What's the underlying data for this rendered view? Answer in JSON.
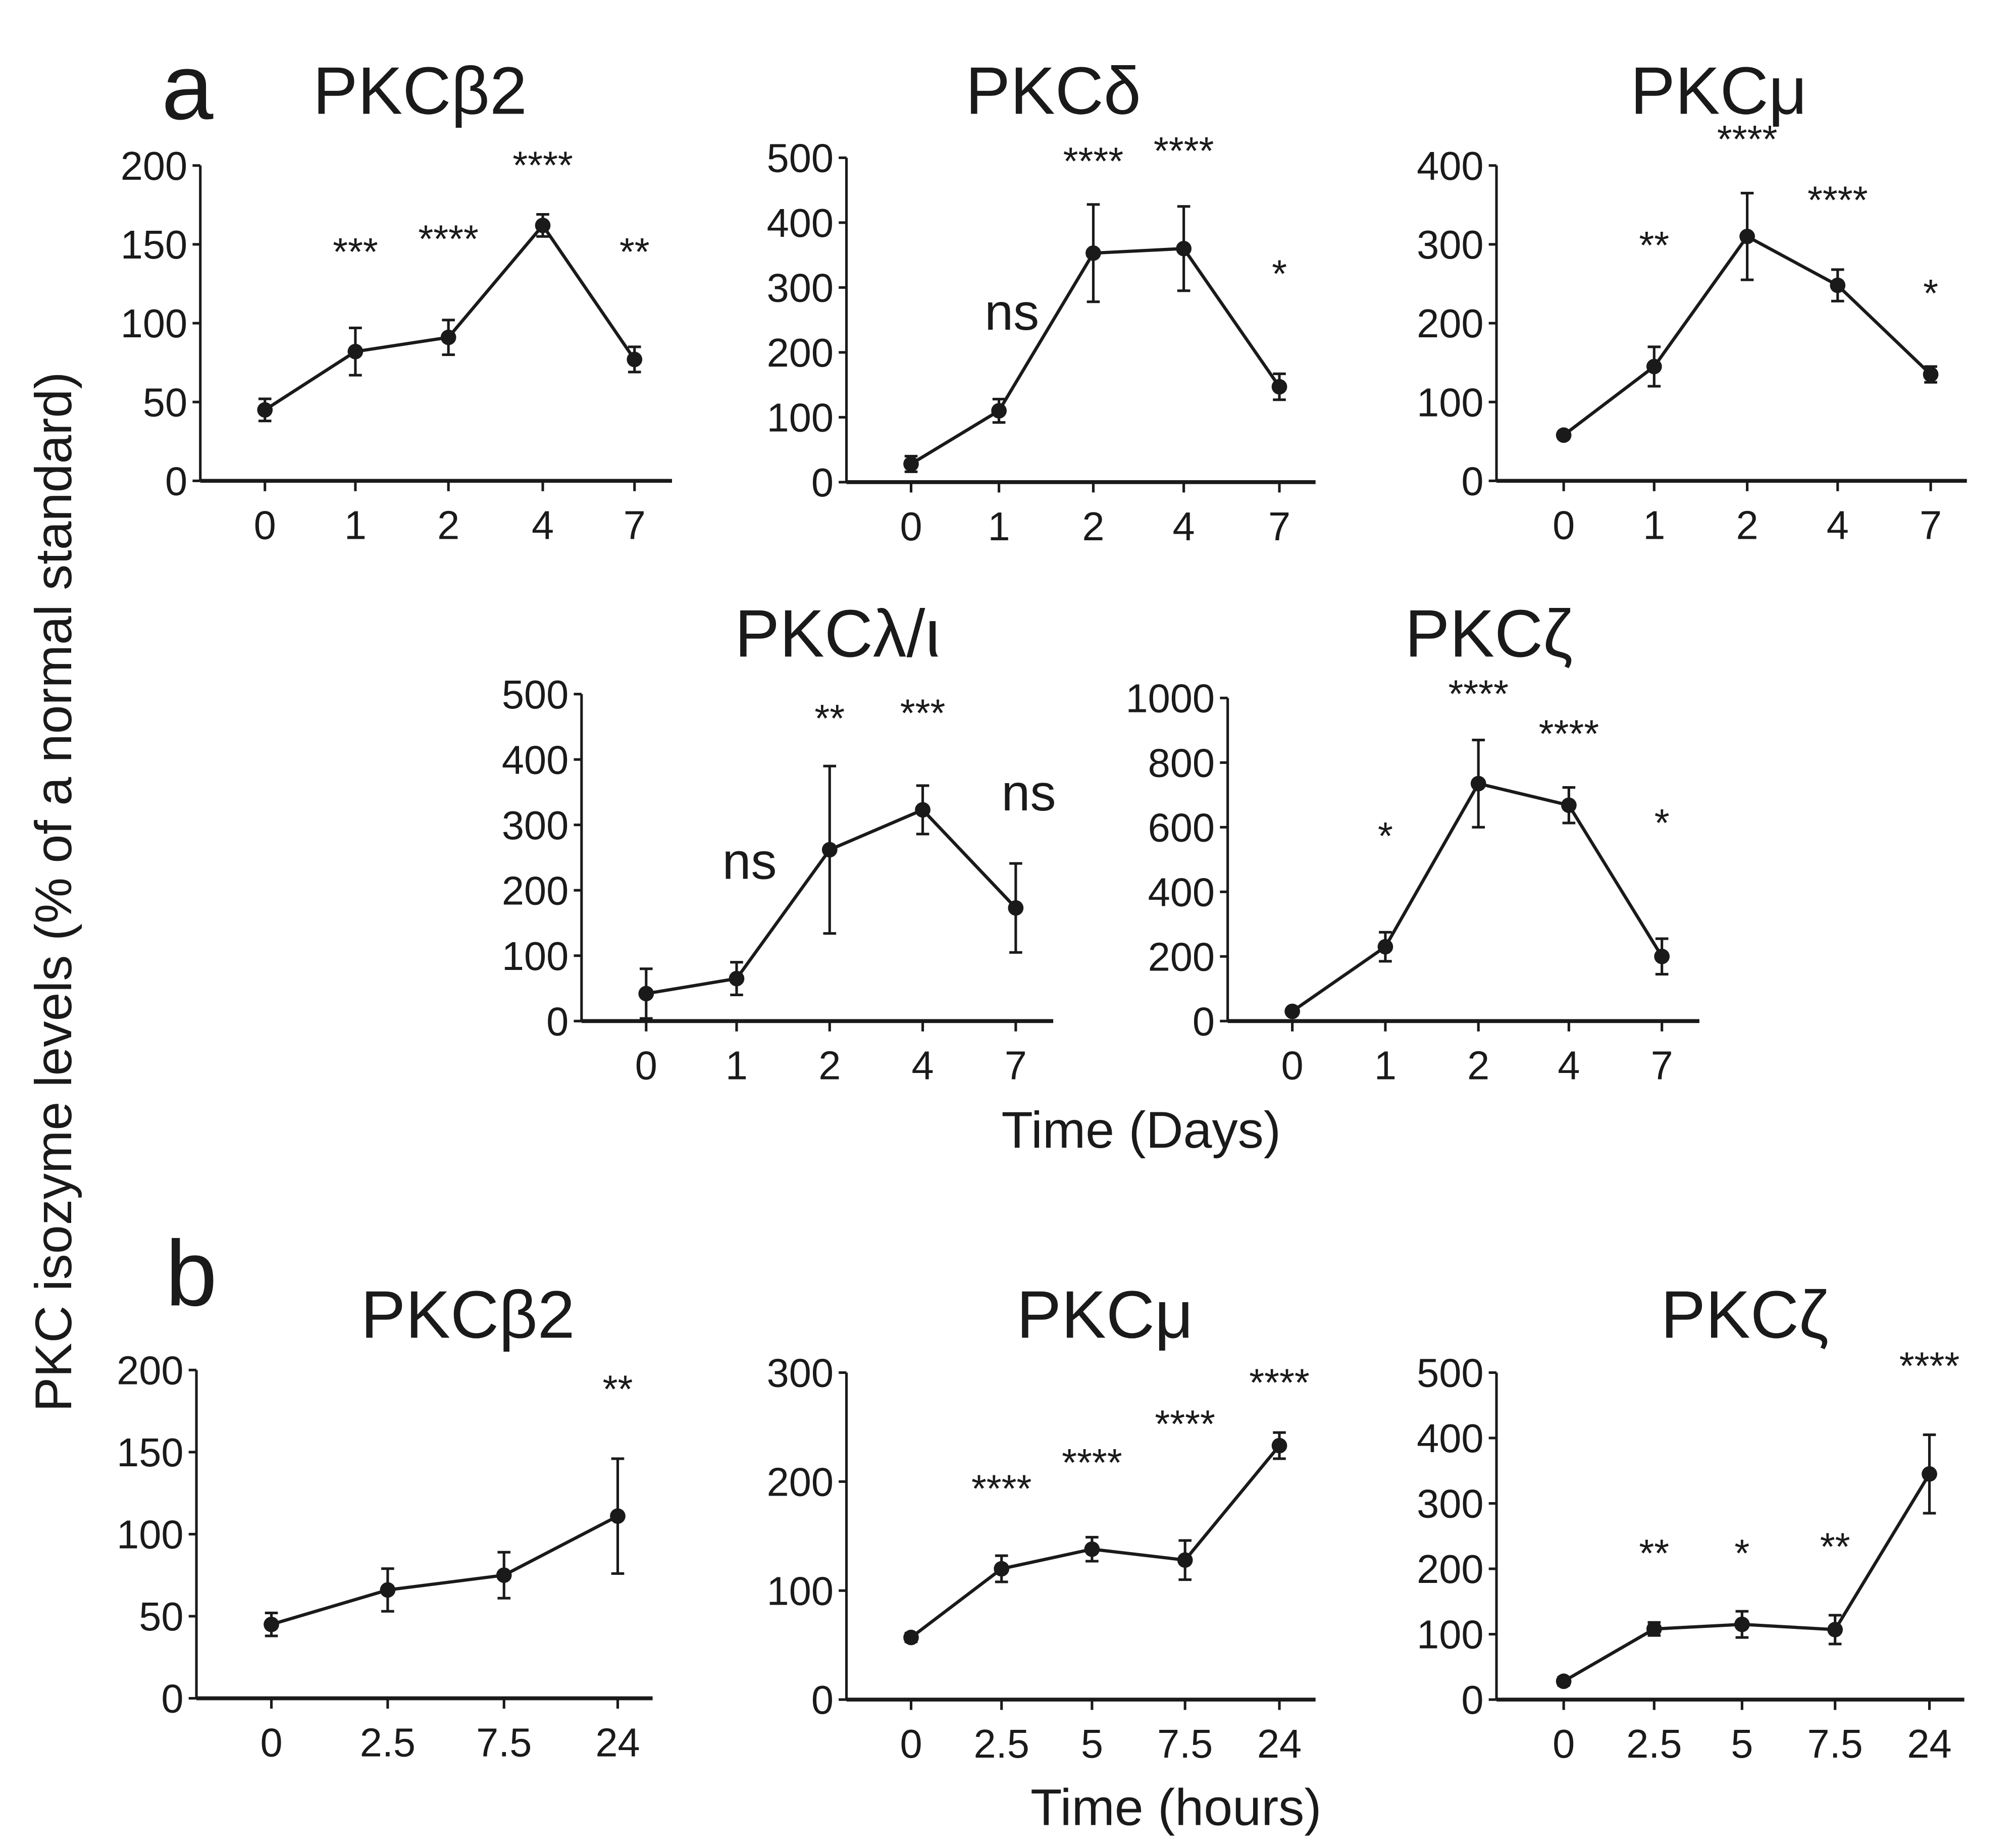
{
  "figure": {
    "panel_a_label": "a",
    "panel_b_label": "b",
    "ylabel": "PKC isozyme levels (% of a normal standard)",
    "xlabel_a": "Time (Days)",
    "xlabel_b": "Time (hours)"
  },
  "chart_data": [
    {
      "type": "line",
      "panel": "a",
      "title": "PKCβ2",
      "categories": [
        "0",
        "1",
        "2",
        "4",
        "7"
      ],
      "values": [
        45,
        82,
        91,
        162,
        77
      ],
      "errors": [
        7,
        15,
        11,
        7,
        8
      ],
      "yticks": [
        0,
        50,
        100,
        150,
        200
      ],
      "ylim": [
        0,
        200
      ],
      "annotations": [
        "",
        "***",
        "****",
        "****",
        "**"
      ]
    },
    {
      "type": "line",
      "panel": "a",
      "title": "PKCδ",
      "categories": [
        "0",
        "1",
        "2",
        "4",
        "7"
      ],
      "values": [
        28,
        110,
        353,
        360,
        147
      ],
      "errors": [
        12,
        18,
        75,
        65,
        20
      ],
      "yticks": [
        0,
        100,
        200,
        300,
        400,
        500
      ],
      "ylim": [
        0,
        500
      ],
      "annotations": [
        "",
        "ns",
        "****",
        "****",
        "*"
      ]
    },
    {
      "type": "line",
      "panel": "a",
      "title": "PKCμ",
      "categories": [
        "0",
        "1",
        "2",
        "4",
        "7"
      ],
      "values": [
        58,
        145,
        310,
        248,
        135
      ],
      "errors": [
        4,
        25,
        55,
        20,
        10
      ],
      "yticks": [
        0,
        100,
        200,
        300,
        400
      ],
      "ylim": [
        0,
        400
      ],
      "annotations": [
        "",
        "**",
        "****",
        "****",
        "*"
      ]
    },
    {
      "type": "line",
      "panel": "a",
      "title": "PKCλ/ι",
      "categories": [
        "0",
        "1",
        "2",
        "4",
        "7"
      ],
      "values": [
        42,
        65,
        262,
        323,
        173
      ],
      "errors": [
        38,
        25,
        128,
        37,
        68
      ],
      "yticks": [
        0,
        100,
        200,
        300,
        400,
        500
      ],
      "ylim": [
        0,
        500
      ],
      "annotations": [
        "",
        "ns",
        "**",
        "***",
        "ns"
      ]
    },
    {
      "type": "line",
      "panel": "a",
      "title": "PKCζ",
      "categories": [
        "0",
        "1",
        "2",
        "4",
        "7"
      ],
      "values": [
        30,
        230,
        735,
        668,
        200
      ],
      "errors": [
        8,
        45,
        135,
        55,
        55
      ],
      "yticks": [
        0,
        200,
        400,
        600,
        800,
        1000
      ],
      "ylim": [
        0,
        1000
      ],
      "annotations": [
        "",
        "*",
        "****",
        "****",
        "*"
      ]
    },
    {
      "type": "line",
      "panel": "b",
      "title": "PKCβ2",
      "categories": [
        "0",
        "2.5",
        "7.5",
        "24"
      ],
      "values": [
        45,
        66,
        75,
        111
      ],
      "errors": [
        7,
        13,
        14,
        35
      ],
      "yticks": [
        0,
        50,
        100,
        150,
        200
      ],
      "ylim": [
        0,
        200
      ],
      "annotations": [
        "",
        "",
        "",
        "**"
      ]
    },
    {
      "type": "line",
      "panel": "b",
      "title": "PKCμ",
      "categories": [
        "0",
        "2.5",
        "5",
        "7.5",
        "24"
      ],
      "values": [
        57,
        120,
        138,
        128,
        233
      ],
      "errors": [
        4,
        12,
        11,
        18,
        12
      ],
      "yticks": [
        0,
        100,
        200,
        300
      ],
      "ylim": [
        0,
        300
      ],
      "annotations": [
        "",
        "****",
        "****",
        "****",
        "****"
      ]
    },
    {
      "type": "line",
      "panel": "b",
      "title": "PKCζ",
      "categories": [
        "0",
        "2.5",
        "5",
        "7.5",
        "24"
      ],
      "values": [
        28,
        108,
        115,
        107,
        345
      ],
      "errors": [
        6,
        10,
        20,
        22,
        60
      ],
      "yticks": [
        0,
        100,
        200,
        300,
        400,
        500
      ],
      "ylim": [
        0,
        500
      ],
      "annotations": [
        "",
        "**",
        "*",
        "**",
        "****"
      ]
    }
  ]
}
